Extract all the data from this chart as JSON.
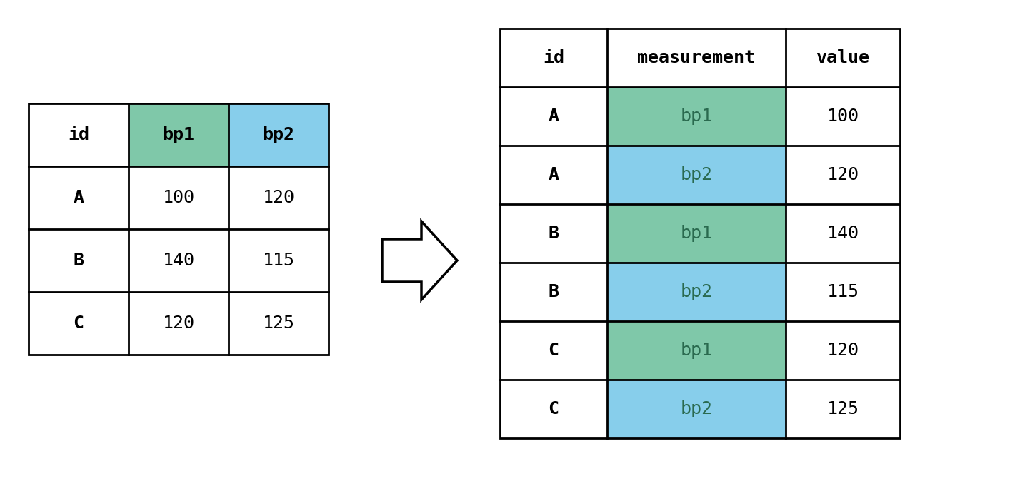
{
  "bg_color": "#ffffff",
  "green_color": "#7fc8a9",
  "blue_color": "#87ceeb",
  "white_color": "#ffffff",
  "header_bg": "#ffffff",
  "border_color": "#000000",
  "text_color": "#000000",
  "colored_text": "#2a6a4f",
  "left_table": {
    "headers": [
      "id",
      "bp1",
      "bp2"
    ],
    "header_colors": [
      "#ffffff",
      "#7fc8a9",
      "#87ceeb"
    ],
    "rows": [
      [
        "A",
        "100",
        "120"
      ],
      [
        "B",
        "140",
        "115"
      ],
      [
        "C",
        "120",
        "125"
      ]
    ],
    "row_colors": [
      [
        "#ffffff",
        "#ffffff",
        "#ffffff"
      ],
      [
        "#ffffff",
        "#ffffff",
        "#ffffff"
      ],
      [
        "#ffffff",
        "#ffffff",
        "#ffffff"
      ]
    ]
  },
  "right_table": {
    "headers": [
      "id",
      "measurement",
      "value"
    ],
    "header_colors": [
      "#ffffff",
      "#ffffff",
      "#ffffff"
    ],
    "rows": [
      [
        "A",
        "bp1",
        "100"
      ],
      [
        "A",
        "bp2",
        "120"
      ],
      [
        "B",
        "bp1",
        "140"
      ],
      [
        "B",
        "bp2",
        "115"
      ],
      [
        "C",
        "bp1",
        "120"
      ],
      [
        "C",
        "bp2",
        "125"
      ]
    ],
    "row_colors": [
      [
        "#ffffff",
        "#7fc8a9",
        "#ffffff"
      ],
      [
        "#ffffff",
        "#87ceeb",
        "#ffffff"
      ],
      [
        "#ffffff",
        "#7fc8a9",
        "#ffffff"
      ],
      [
        "#ffffff",
        "#87ceeb",
        "#ffffff"
      ],
      [
        "#ffffff",
        "#7fc8a9",
        "#ffffff"
      ],
      [
        "#ffffff",
        "#87ceeb",
        "#ffffff"
      ]
    ]
  },
  "font_size": 18,
  "header_font_size": 18
}
